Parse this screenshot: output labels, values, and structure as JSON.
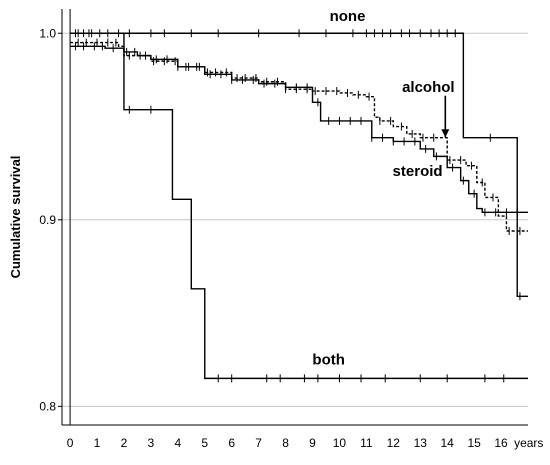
{
  "chart_data": {
    "type": "line",
    "title": "",
    "xlabel": "",
    "ylabel": "Cumulative survival",
    "x_unit_label": "years",
    "xlim": [
      -0.3,
      17
    ],
    "ylim": [
      0.79,
      1.013
    ],
    "x_ticks": [
      0,
      1,
      2,
      3,
      4,
      5,
      6,
      7,
      8,
      9,
      10,
      11,
      12,
      13,
      14,
      15,
      16
    ],
    "y_ticks": [
      {
        "value": 0.8,
        "label": "0.8"
      },
      {
        "value": 0.9,
        "label": "0.9"
      },
      {
        "value": 1.0,
        "label": "1.0"
      }
    ],
    "grid_y": [
      0.8,
      0.9,
      1.0
    ],
    "series": [
      {
        "name": "none",
        "style": "solid",
        "label_at": {
          "x": 10.3,
          "y": 1.0065
        },
        "steps": [
          [
            0,
            1.0
          ],
          [
            14.6,
            1.0
          ],
          [
            14.6,
            0.944
          ],
          [
            16.6,
            0.944
          ],
          [
            16.6,
            0.859
          ],
          [
            17,
            0.859
          ]
        ],
        "censored": [
          0.2,
          0.5,
          0.8,
          1.1,
          1.4,
          1.8,
          2.2,
          3.0,
          3.5,
          4.5,
          5.5,
          7.0,
          8.5,
          9.5,
          10.5,
          11.0,
          11.3,
          11.6,
          11.9,
          12.3,
          12.6,
          13.0,
          13.4,
          13.7,
          14.0,
          14.3,
          15.6,
          16.7
        ]
      },
      {
        "name": "alcohol",
        "style": "dashed",
        "label_at": {
          "x": 13.3,
          "y": 0.9685
        },
        "steps": [
          [
            0,
            0.995
          ],
          [
            1.8,
            0.993
          ],
          [
            2.0,
            0.988
          ],
          [
            3.0,
            0.985
          ],
          [
            4.0,
            0.982
          ],
          [
            5.0,
            0.979
          ],
          [
            6.0,
            0.976
          ],
          [
            7.0,
            0.974
          ],
          [
            8.0,
            0.97
          ],
          [
            9.0,
            0.969
          ],
          [
            10.0,
            0.968
          ],
          [
            10.5,
            0.967
          ],
          [
            11.0,
            0.966
          ],
          [
            11.3,
            0.955
          ],
          [
            11.5,
            0.953
          ],
          [
            12.0,
            0.95
          ],
          [
            12.5,
            0.946
          ],
          [
            13.0,
            0.944
          ],
          [
            13.5,
            0.944
          ],
          [
            14.0,
            0.932
          ],
          [
            14.7,
            0.929
          ],
          [
            15.1,
            0.92
          ],
          [
            15.4,
            0.912
          ],
          [
            15.9,
            0.902
          ],
          [
            16.2,
            0.894
          ],
          [
            17,
            0.894
          ]
        ],
        "censored": [
          0.3,
          0.6,
          1.0,
          1.4,
          1.7,
          2.2,
          2.6,
          3.1,
          3.5,
          3.9,
          4.3,
          4.7,
          5.1,
          5.4,
          5.8,
          6.2,
          6.5,
          6.9,
          7.3,
          7.7,
          8.0,
          8.4,
          8.8,
          9.1,
          9.5,
          9.9,
          10.3,
          10.7,
          11.1,
          11.5,
          11.9,
          12.3,
          12.7,
          13.1,
          13.5,
          14.1,
          14.5,
          14.9,
          15.3,
          15.7,
          16.3,
          16.7
        ]
      },
      {
        "name": "steroid",
        "style": "solid",
        "label_at": {
          "x": 12.9,
          "y": 0.9235
        },
        "steps": [
          [
            0,
            0.993
          ],
          [
            1.3,
            0.992
          ],
          [
            2.0,
            0.99
          ],
          [
            2.5,
            0.988
          ],
          [
            3.0,
            0.986
          ],
          [
            4.0,
            0.982
          ],
          [
            5.0,
            0.978
          ],
          [
            6.0,
            0.975
          ],
          [
            7.0,
            0.973
          ],
          [
            8.0,
            0.971
          ],
          [
            9.0,
            0.963
          ],
          [
            9.3,
            0.953
          ],
          [
            10.0,
            0.953
          ],
          [
            11.0,
            0.953
          ],
          [
            11.2,
            0.944
          ],
          [
            12.0,
            0.942
          ],
          [
            13.0,
            0.938
          ],
          [
            13.5,
            0.934
          ],
          [
            14.0,
            0.928
          ],
          [
            14.5,
            0.921
          ],
          [
            14.8,
            0.914
          ],
          [
            15.1,
            0.906
          ],
          [
            15.3,
            0.904
          ],
          [
            17,
            0.904
          ]
        ],
        "censored": [
          0.2,
          0.5,
          0.9,
          1.2,
          1.6,
          2.1,
          2.4,
          2.8,
          3.2,
          3.6,
          4.0,
          4.4,
          4.8,
          5.2,
          5.6,
          6.0,
          6.4,
          6.8,
          7.2,
          7.6,
          8.0,
          8.4,
          8.8,
          9.2,
          9.6,
          10.0,
          10.4,
          10.8,
          11.2,
          11.6,
          12.0,
          12.4,
          12.8,
          13.2,
          13.6,
          14.2,
          14.6,
          15.0,
          15.4,
          15.8,
          16.2,
          16.6
        ]
      },
      {
        "name": "both",
        "style": "solid",
        "label_at": {
          "x": 9.6,
          "y": 0.8225
        },
        "steps": [
          [
            0,
            1.0
          ],
          [
            2.0,
            1.0
          ],
          [
            2.0,
            0.959
          ],
          [
            3.8,
            0.959
          ],
          [
            3.8,
            0.911
          ],
          [
            4.5,
            0.911
          ],
          [
            4.5,
            0.863
          ],
          [
            5.0,
            0.863
          ],
          [
            5.0,
            0.815
          ],
          [
            17,
            0.815
          ]
        ],
        "censored": [
          0.3,
          0.7,
          2.2,
          3.0,
          5.5,
          6.0,
          7.3,
          7.8,
          8.7,
          9.2,
          10.0,
          10.8,
          11.7,
          13.0,
          14.0,
          15.4,
          16.1
        ]
      }
    ],
    "annotations": [
      {
        "type": "arrow",
        "from": {
          "x": 13.93,
          "y": 0.9665
        },
        "to": {
          "x": 13.93,
          "y": 0.9475
        }
      }
    ]
  }
}
